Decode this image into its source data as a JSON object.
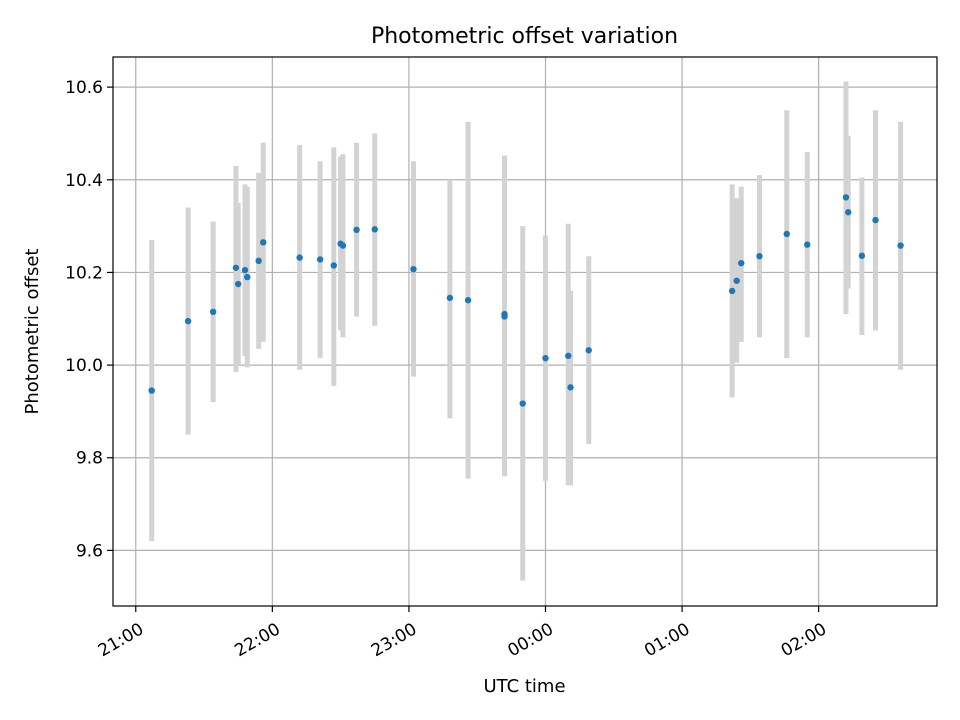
{
  "chart_data": {
    "type": "scatter",
    "title": "Photometric offset variation",
    "xlabel": "UTC time",
    "ylabel": "Photometric offset",
    "x_axis": {
      "kind": "time",
      "range": [
        "20:50",
        "02:52"
      ],
      "ticks": [
        "21:00",
        "22:00",
        "23:00",
        "00:00",
        "01:00",
        "02:00"
      ],
      "tick_label_rotation": "30deg"
    },
    "y_axis": {
      "range": [
        9.48,
        10.665
      ],
      "ticks": [
        9.6,
        9.8,
        10.0,
        10.2,
        10.4,
        10.6
      ],
      "tick_labels": [
        "9.6",
        "9.8",
        "10.0",
        "10.2",
        "10.4",
        "10.6"
      ]
    },
    "grid": true,
    "marker_color": "#1f77b4",
    "errorbar_color": "#d3d3d3",
    "points": [
      {
        "t": "21:07",
        "y": 9.945,
        "lo": 9.62,
        "hi": 10.27
      },
      {
        "t": "21:23",
        "y": 10.095,
        "lo": 9.85,
        "hi": 10.34
      },
      {
        "t": "21:34",
        "y": 10.115,
        "lo": 9.92,
        "hi": 10.31
      },
      {
        "t": "21:44",
        "y": 10.21,
        "lo": 9.985,
        "hi": 10.43
      },
      {
        "t": "21:45",
        "y": 10.175,
        "lo": 10.0,
        "hi": 10.35
      },
      {
        "t": "21:48",
        "y": 10.205,
        "lo": 10.02,
        "hi": 10.39
      },
      {
        "t": "21:49",
        "y": 10.19,
        "lo": 9.995,
        "hi": 10.385
      },
      {
        "t": "21:54",
        "y": 10.225,
        "lo": 10.035,
        "hi": 10.415
      },
      {
        "t": "21:56",
        "y": 10.265,
        "lo": 10.05,
        "hi": 10.48
      },
      {
        "t": "22:12",
        "y": 10.232,
        "lo": 9.99,
        "hi": 10.475
      },
      {
        "t": "22:21",
        "y": 10.228,
        "lo": 10.015,
        "hi": 10.44
      },
      {
        "t": "22:27",
        "y": 10.215,
        "lo": 9.955,
        "hi": 10.47
      },
      {
        "t": "22:30",
        "y": 10.262,
        "lo": 10.075,
        "hi": 10.45
      },
      {
        "t": "22:31",
        "y": 10.258,
        "lo": 10.06,
        "hi": 10.455
      },
      {
        "t": "22:37",
        "y": 10.292,
        "lo": 10.105,
        "hi": 10.48
      },
      {
        "t": "22:45",
        "y": 10.293,
        "lo": 10.085,
        "hi": 10.5
      },
      {
        "t": "23:02",
        "y": 10.207,
        "lo": 9.975,
        "hi": 10.44
      },
      {
        "t": "23:18",
        "y": 10.145,
        "lo": 9.885,
        "hi": 10.4
      },
      {
        "t": "23:26",
        "y": 10.14,
        "lo": 9.755,
        "hi": 10.525
      },
      {
        "t": "23:42",
        "y": 10.11,
        "lo": 9.77,
        "hi": 10.452
      },
      {
        "t": "23:42",
        "y": 10.105,
        "lo": 9.76,
        "hi": 10.45
      },
      {
        "t": "23:50",
        "y": 9.917,
        "lo": 9.535,
        "hi": 10.3
      },
      {
        "t": "00:00",
        "y": 10.015,
        "lo": 9.75,
        "hi": 10.28
      },
      {
        "t": "00:10",
        "y": 10.02,
        "lo": 9.74,
        "hi": 10.305
      },
      {
        "t": "00:11",
        "y": 9.952,
        "lo": 9.74,
        "hi": 10.16
      },
      {
        "t": "00:19",
        "y": 10.032,
        "lo": 9.83,
        "hi": 10.235
      },
      {
        "t": "01:22",
        "y": 10.16,
        "lo": 9.93,
        "hi": 10.39
      },
      {
        "t": "01:24",
        "y": 10.182,
        "lo": 10.005,
        "hi": 10.36
      },
      {
        "t": "01:26",
        "y": 10.22,
        "lo": 10.05,
        "hi": 10.385
      },
      {
        "t": "01:34",
        "y": 10.235,
        "lo": 10.06,
        "hi": 10.41
      },
      {
        "t": "01:46",
        "y": 10.283,
        "lo": 10.015,
        "hi": 10.55
      },
      {
        "t": "01:55",
        "y": 10.26,
        "lo": 10.06,
        "hi": 10.46
      },
      {
        "t": "02:12",
        "y": 10.362,
        "lo": 10.11,
        "hi": 10.612
      },
      {
        "t": "02:13",
        "y": 10.33,
        "lo": 10.165,
        "hi": 10.495
      },
      {
        "t": "02:19",
        "y": 10.236,
        "lo": 10.065,
        "hi": 10.405
      },
      {
        "t": "02:25",
        "y": 10.313,
        "lo": 10.075,
        "hi": 10.55
      },
      {
        "t": "02:36",
        "y": 10.258,
        "lo": 9.99,
        "hi": 10.525
      }
    ]
  }
}
